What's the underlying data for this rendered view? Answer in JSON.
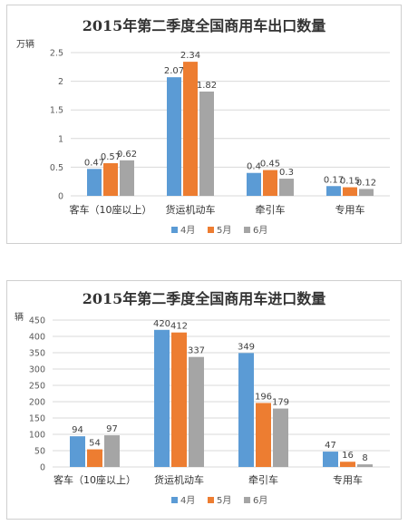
{
  "chart_data": [
    {
      "type": "bar",
      "title": "2015年第二季度全国商用车出口数量",
      "ylabel": "万辆",
      "ylim": [
        0,
        2.5
      ],
      "yticks": [
        "0",
        "0.5",
        "1",
        "1.5",
        "2",
        "2.5"
      ],
      "categories": [
        "客车（10座以上）",
        "货运机动车",
        "牵引车",
        "专用车"
      ],
      "series": [
        {
          "name": "4月",
          "values": [
            0.47,
            2.07,
            0.4,
            0.17
          ],
          "labels": [
            "0.47",
            "2.07",
            "0.4",
            "0.17"
          ]
        },
        {
          "name": "5月",
          "values": [
            0.57,
            2.34,
            0.45,
            0.15
          ],
          "labels": [
            "0.57",
            "2.34",
            "0.45",
            "0.15"
          ]
        },
        {
          "name": "6月",
          "values": [
            0.62,
            1.82,
            0.3,
            0.12
          ],
          "labels": [
            "0.62",
            "1.82",
            "0.3",
            "0.12"
          ]
        }
      ],
      "grid": true,
      "legend": "bottom"
    },
    {
      "type": "bar",
      "title": "2015年第二季度全国商用车进口数量",
      "ylabel": "辆",
      "ylim": [
        0,
        450
      ],
      "yticks": [
        "0",
        "50",
        "100",
        "150",
        "200",
        "250",
        "300",
        "350",
        "400",
        "450"
      ],
      "categories": [
        "客车（10座以上）",
        "货运机动车",
        "牵引车",
        "专用车"
      ],
      "series": [
        {
          "name": "4月",
          "values": [
            94,
            420,
            349,
            47
          ],
          "labels": [
            "94",
            "420",
            "349",
            "47"
          ]
        },
        {
          "name": "5月",
          "values": [
            54,
            412,
            196,
            16
          ],
          "labels": [
            "54",
            "412",
            "196",
            "16"
          ]
        },
        {
          "name": "6月",
          "values": [
            97,
            337,
            179,
            8
          ],
          "labels": [
            "97",
            "337",
            "179",
            "8"
          ]
        }
      ],
      "grid": true,
      "legend": "bottom"
    }
  ],
  "colors": [
    "#5B9BD5",
    "#ED7D31",
    "#A5A5A5"
  ],
  "grid_color": "#d9d9d9"
}
